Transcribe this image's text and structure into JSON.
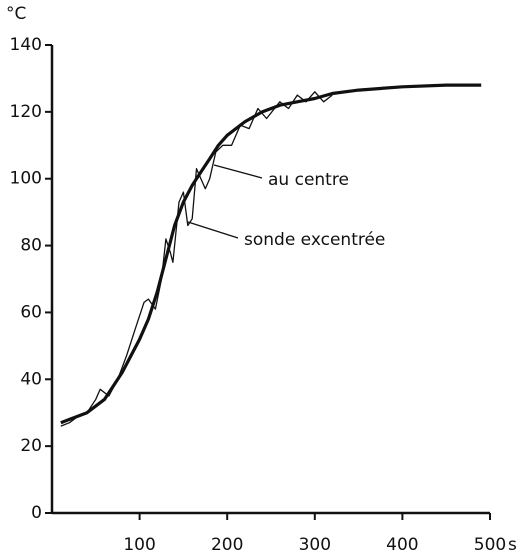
{
  "chart_data": {
    "type": "line",
    "y_label": "°C",
    "x_label": "s",
    "xlim": [
      0,
      500
    ],
    "ylim": [
      0,
      140
    ],
    "xticks": [
      100,
      200,
      300,
      400,
      500
    ],
    "yticks": [
      0,
      20,
      40,
      60,
      80,
      100,
      120,
      140
    ],
    "color": "#111111",
    "series": [
      {
        "name": "au centre",
        "x": [
          10,
          20,
          40,
          60,
          80,
          100,
          110,
          120,
          130,
          140,
          150,
          160,
          170,
          180,
          190,
          200,
          220,
          240,
          260,
          280,
          300,
          320,
          350,
          400,
          450,
          490
        ],
        "values": [
          27,
          28,
          30,
          34,
          42,
          52,
          58,
          66,
          76,
          86,
          93,
          98,
          102,
          106,
          110,
          113,
          117,
          120,
          122,
          123,
          124,
          125.5,
          126.5,
          127.5,
          128,
          128
        ]
      },
      {
        "name": "sonde excentrée",
        "x": [
          10,
          20,
          30,
          40,
          50,
          55,
          65,
          75,
          85,
          95,
          105,
          110,
          118,
          125,
          130,
          135,
          138,
          145,
          150,
          155,
          160,
          165,
          170,
          175,
          180,
          187,
          195,
          205,
          215,
          225,
          235,
          245,
          260,
          270,
          280,
          290,
          300,
          310,
          320
        ],
        "values": [
          26,
          27,
          29,
          30,
          34,
          37,
          35,
          40,
          47,
          55,
          63,
          64,
          61,
          70,
          82,
          78,
          75,
          93,
          96,
          86,
          88,
          103,
          100,
          97,
          100,
          108,
          110,
          110,
          116,
          115,
          121,
          118,
          123,
          121,
          125,
          123,
          126,
          123,
          125
        ]
      }
    ]
  }
}
